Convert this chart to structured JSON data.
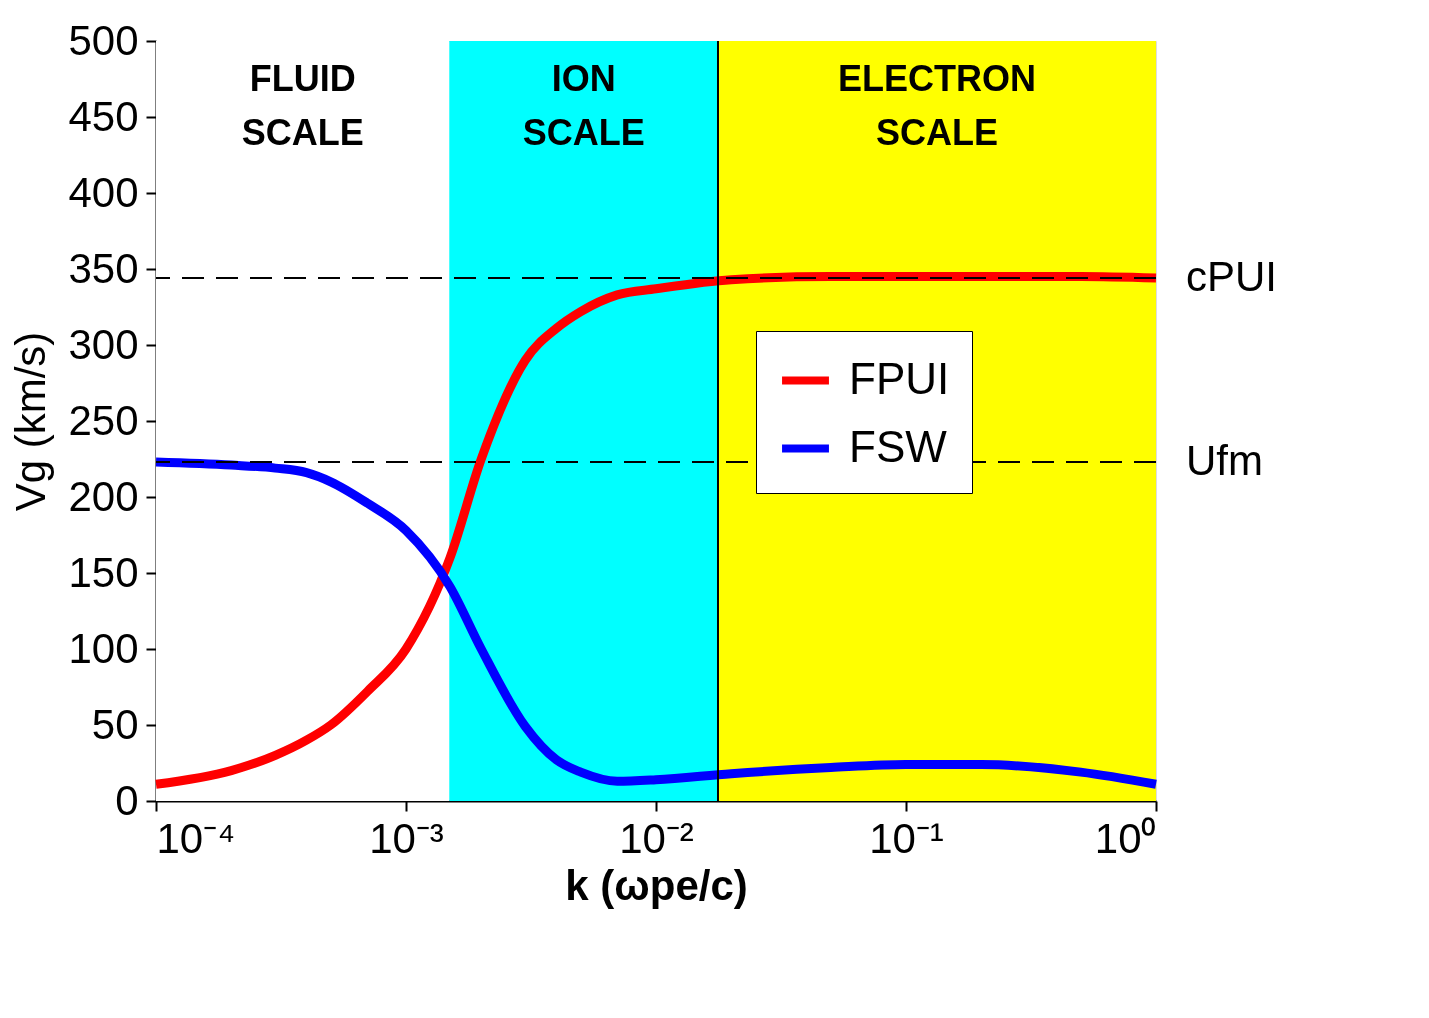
{
  "chart_data": {
    "type": "line",
    "xlabel": "k (ωpe/c)",
    "ylabel": "Vg (km/s)",
    "log": "x",
    "xlim": [
      0.0001,
      1
    ],
    "xticks": [
      {
        "value": 0.0001,
        "label": "10⁻⁴"
      },
      {
        "value": 0.001,
        "label": "10⁻³"
      },
      {
        "value": 0.01,
        "label": "10⁻²"
      },
      {
        "value": 0.1,
        "label": "10⁻¹"
      },
      {
        "value": 1,
        "label": "10⁰"
      }
    ],
    "ylim": [
      0,
      500
    ],
    "yticks": [
      0,
      50,
      100,
      150,
      200,
      250,
      300,
      350,
      400,
      450,
      500
    ],
    "grid": false,
    "legend": "right",
    "line_style": "solid",
    "marker": "none",
    "x": [
      0.0001,
      0.0002,
      0.0003,
      0.0004,
      0.0005,
      0.0007,
      0.001,
      0.0015,
      0.002,
      0.003,
      0.004,
      0.005,
      0.007,
      0.01,
      0.02,
      0.05,
      0.1,
      0.2,
      0.5,
      1
    ],
    "series": [
      {
        "name": "FPUI",
        "color": "#ff0000",
        "values": [
          11,
          20,
          30,
          40,
          50,
          72,
          100,
          160,
          225,
          290,
          311,
          322,
          333,
          337,
          343,
          345,
          345,
          345,
          345,
          344
        ]
      },
      {
        "name": "FSW",
        "color": "#0000ff",
        "values": [
          223,
          221,
          219,
          216,
          210,
          196,
          178,
          141,
          100,
          49,
          27,
          19,
          13,
          14,
          18,
          22,
          24,
          24,
          19,
          11
        ]
      }
    ],
    "bands": [
      {
        "axis": "x",
        "from": 0.0001,
        "to": 0.00149,
        "label": "FLUID\nSCALE",
        "color": "#ffffff"
      },
      {
        "axis": "x",
        "from": 0.00149,
        "to": 0.0177,
        "label": "ION\nSCALE",
        "color": "#00ffff"
      },
      {
        "axis": "x",
        "from": 0.0177,
        "to": 1,
        "label": "ELECTRON\nSCALE",
        "color": "#ffff00"
      }
    ],
    "ref_lines": [
      {
        "axis": "y",
        "value": 344,
        "label": "cPUI",
        "line_style": "dashed",
        "color": "#000000"
      },
      {
        "axis": "y",
        "value": 223,
        "label": "Ufm",
        "line_style": "dashed",
        "color": "#000000"
      },
      {
        "axis": "x",
        "value": 0.0177,
        "line_style": "solid",
        "color": "#000000"
      }
    ]
  }
}
